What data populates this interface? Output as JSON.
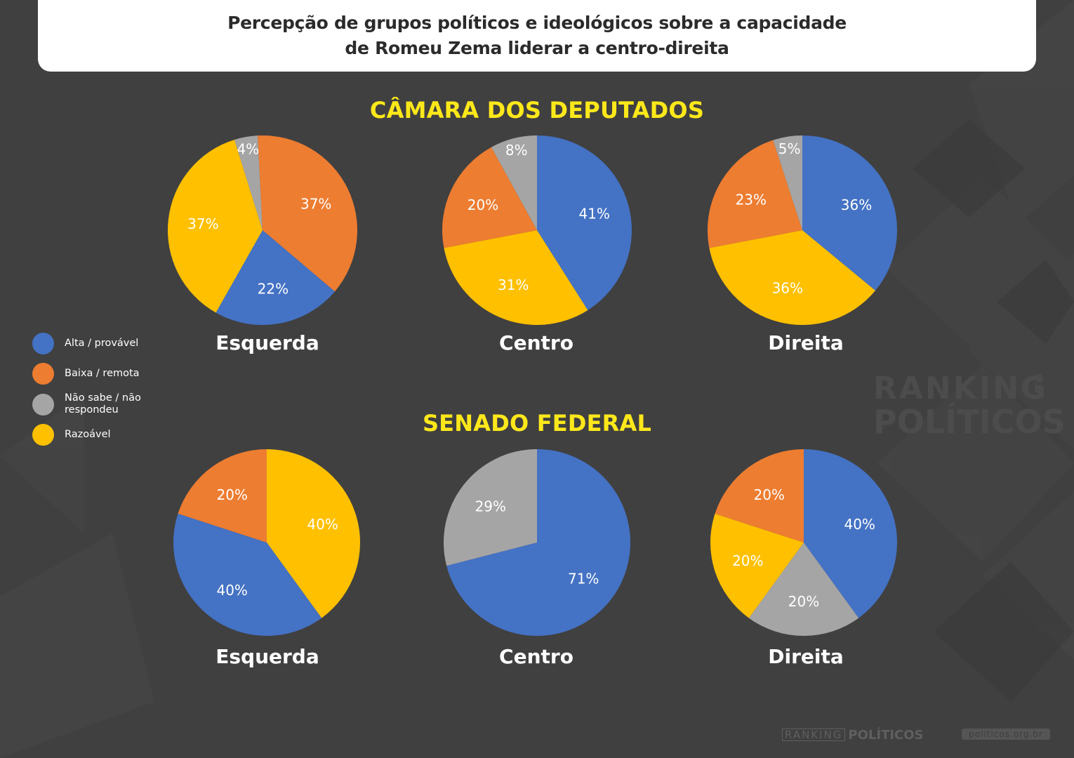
{
  "title": {
    "line1": "Percepção de grupos políticos e ideológicos sobre a capacidade",
    "line2": "de Romeu Zema liderar a centro-direita"
  },
  "sections": {
    "camara": "CÂMARA DOS DEPUTADOS",
    "senado": "SENADO FEDERAL"
  },
  "groups": {
    "camara": [
      "Esquerda",
      "Centro",
      "Direita"
    ],
    "senado": [
      "Esquerda",
      "Centro",
      "Direita"
    ]
  },
  "legend": [
    {
      "label": "Alta / provável",
      "color": "#4472c4"
    },
    {
      "label": "Baixa / remota",
      "color": "#ed7d31"
    },
    {
      "label": "Não sabe / não respondeu",
      "color": "#a5a5a5"
    },
    {
      "label": "Razoável",
      "color": "#ffc000"
    }
  ],
  "watermark": {
    "line1": "RANKING",
    "dos": "DOS",
    "line2": "POLÍTICOS"
  },
  "footer": {
    "brand_a": "RANKING",
    "brand_b": "POLÍTICOS",
    "url": "politicos.org.br"
  },
  "chart_data": [
    {
      "type": "pie",
      "title": "CÂMARA DOS DEPUTADOS - Esquerda",
      "slices": [
        {
          "label": "Não sabe / não respondeu",
          "value": 4,
          "text": "4%"
        },
        {
          "label": "Baixa / remota",
          "value": 37,
          "text": "37%"
        },
        {
          "label": "Alta / provável",
          "value": 22,
          "text": "22%"
        },
        {
          "label": "Razoável",
          "value": 37,
          "text": "37%"
        }
      ]
    },
    {
      "type": "pie",
      "title": "CÂMARA DOS DEPUTADOS - Centro",
      "slices": [
        {
          "label": "Alta / provável",
          "value": 41,
          "text": "41%"
        },
        {
          "label": "Razoável",
          "value": 31,
          "text": "31%"
        },
        {
          "label": "Baixa / remota",
          "value": 20,
          "text": "20%"
        },
        {
          "label": "Não sabe / não respondeu",
          "value": 8,
          "text": "8%"
        }
      ]
    },
    {
      "type": "pie",
      "title": "CÂMARA DOS DEPUTADOS - Direita",
      "slices": [
        {
          "label": "Alta / provável",
          "value": 36,
          "text": "36%"
        },
        {
          "label": "Razoável",
          "value": 36,
          "text": "36%"
        },
        {
          "label": "Baixa / remota",
          "value": 23,
          "text": "23%"
        },
        {
          "label": "Não sabe / não respondeu",
          "value": 5,
          "text": "5%"
        }
      ]
    },
    {
      "type": "pie",
      "title": "SENADO FEDERAL - Esquerda",
      "slices": [
        {
          "label": "Razoável",
          "value": 40,
          "text": "40%"
        },
        {
          "label": "Alta / provável",
          "value": 40,
          "text": "40%"
        },
        {
          "label": "Baixa / remota",
          "value": 20,
          "text": "20%"
        }
      ]
    },
    {
      "type": "pie",
      "title": "SENADO FEDERAL - Centro",
      "slices": [
        {
          "label": "Alta / provável",
          "value": 71,
          "text": "71%"
        },
        {
          "label": "Não sabe / não respondeu",
          "value": 29,
          "text": "29%"
        }
      ]
    },
    {
      "type": "pie",
      "title": "SENADO FEDERAL - Direita",
      "slices": [
        {
          "label": "Alta / provável",
          "value": 40,
          "text": "40%"
        },
        {
          "label": "Não sabe / não respondeu",
          "value": 20,
          "text": "20%"
        },
        {
          "label": "Razoável",
          "value": 20,
          "text": "20%"
        },
        {
          "label": "Baixa / remota",
          "value": 20,
          "text": "20%"
        }
      ]
    }
  ]
}
